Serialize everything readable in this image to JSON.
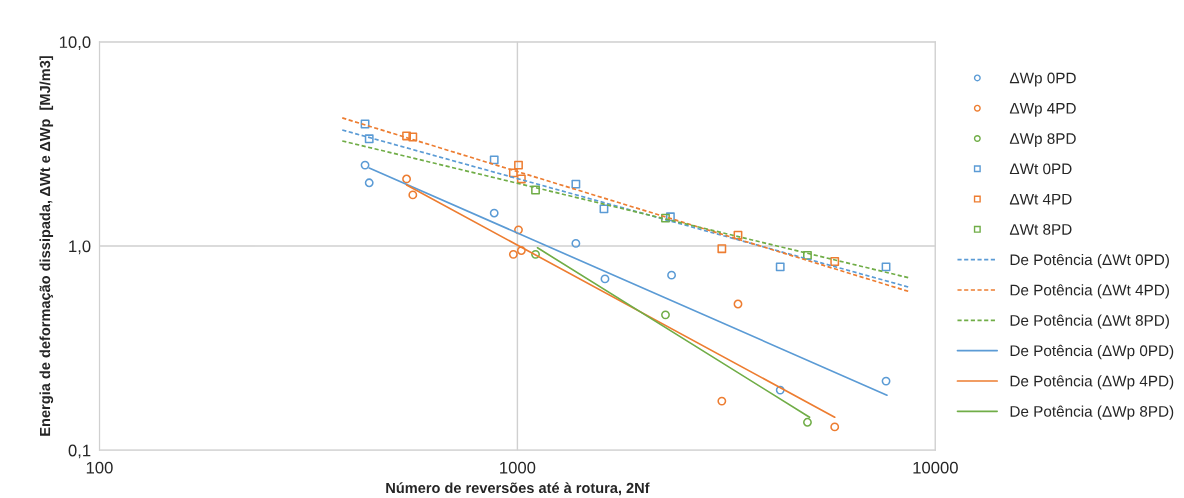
{
  "chart_data": {
    "type": "scatter",
    "xlabel": "Número de reversões até à rotura, 2Nf",
    "ylabel": "Energia de deformação dissipada, ΔWt e ΔWp  [MJ/m3]",
    "log": "xy",
    "grid": true,
    "legend": "right",
    "xlim": [
      100,
      10000
    ],
    "xticks": [
      100,
      1000,
      10000
    ],
    "ylim": [
      0.1,
      10
    ],
    "yticks": [
      {
        "value": 0.1,
        "label": "0,1"
      },
      {
        "value": 1,
        "label": "1,0"
      },
      {
        "value": 10,
        "label": "10,0"
      }
    ],
    "series": [
      {
        "name": "ΔWp 0PD",
        "color": "#5b9bd5",
        "marker": "circle",
        "x": [
          432,
          442,
          880,
          1380,
          1620,
          2338,
          4254,
          7621
        ],
        "values": [
          2.49,
          2.04,
          1.45,
          1.03,
          0.69,
          0.72,
          0.197,
          0.218
        ]
      },
      {
        "name": "ΔWp 4PD",
        "color": "#ed7d31",
        "marker": "circle",
        "x": [
          543,
          562,
          1006,
          978,
          1022,
          3371,
          3084,
          5744
        ],
        "values": [
          2.13,
          1.78,
          1.2,
          0.91,
          0.95,
          0.52,
          0.174,
          0.13
        ]
      },
      {
        "name": "ΔWp 8PD",
        "color": "#70ad47",
        "marker": "circle",
        "x": [
          1105,
          2261,
          4943
        ],
        "values": [
          0.91,
          0.46,
          0.137
        ]
      },
      {
        "name": "ΔWt 0PD",
        "color": "#5b9bd5",
        "marker": "square",
        "x": [
          432,
          442,
          880,
          1380,
          1611,
          2323,
          4254,
          7621
        ],
        "values": [
          3.96,
          3.35,
          2.64,
          2.01,
          1.52,
          1.39,
          0.79,
          0.79
        ]
      },
      {
        "name": "ΔWt 4PD",
        "color": "#ed7d31",
        "marker": "square",
        "x": [
          543,
          562,
          1006,
          978,
          1022,
          3084,
          3371,
          5744
        ],
        "values": [
          3.46,
          3.42,
          2.49,
          2.28,
          2.13,
          0.97,
          1.13,
          0.84
        ]
      },
      {
        "name": "ΔWt 8PD",
        "color": "#70ad47",
        "marker": "square",
        "x": [
          1105,
          2261,
          4943
        ],
        "values": [
          1.88,
          1.37,
          0.9
        ]
      },
      {
        "name": "De Potência (ΔWt 0PD)",
        "type": "line",
        "line_style": "dashed",
        "color": "#5b9bd5",
        "x": [
          381,
          8610
        ],
        "values": [
          3.7,
          0.63
        ]
      },
      {
        "name": "De Potência (ΔWt 4PD)",
        "type": "line",
        "line_style": "dashed",
        "color": "#ed7d31",
        "x": [
          381,
          8610
        ],
        "values": [
          4.24,
          0.6
        ]
      },
      {
        "name": "De Potência (ΔWt 8PD)",
        "type": "line",
        "line_style": "dashed",
        "color": "#70ad47",
        "x": [
          381,
          8610
        ],
        "values": [
          3.27,
          0.7
        ]
      },
      {
        "name": "De Potência (ΔWp 0PD)",
        "type": "line",
        "line_style": "solid",
        "color": "#5b9bd5",
        "x": [
          442,
          7660
        ],
        "values": [
          2.41,
          0.186
        ]
      },
      {
        "name": "De Potência (ΔWp 4PD)",
        "type": "line",
        "line_style": "solid",
        "color": "#ed7d31",
        "x": [
          543,
          5744
        ],
        "values": [
          1.99,
          0.145
        ]
      },
      {
        "name": "De Potência (ΔWp 8PD)",
        "type": "line",
        "line_style": "solid",
        "color": "#70ad47",
        "x": [
          1117,
          5000
        ],
        "values": [
          0.98,
          0.145
        ]
      }
    ]
  }
}
